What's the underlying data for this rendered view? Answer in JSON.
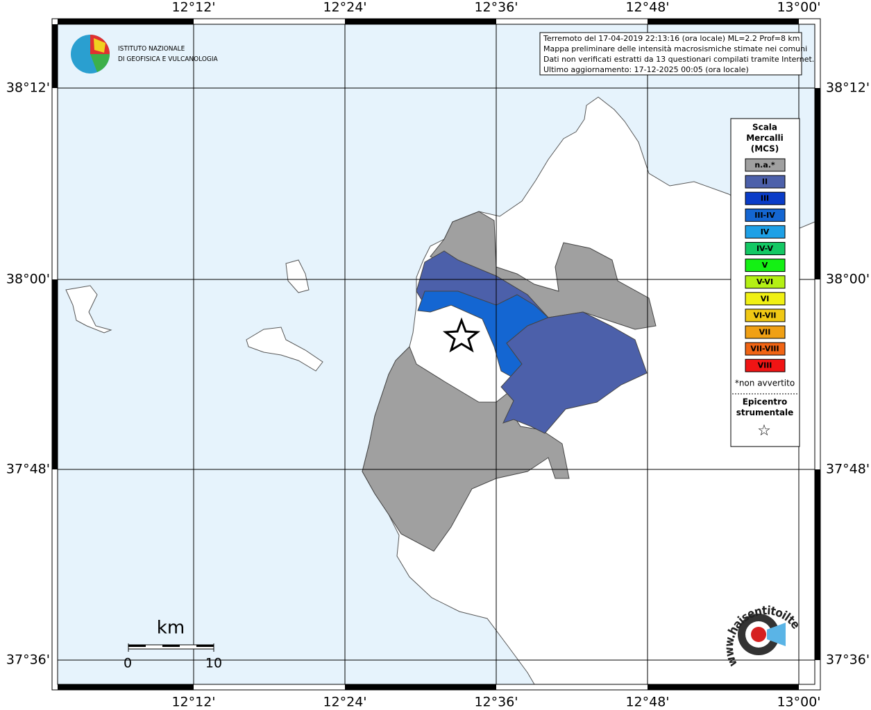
{
  "coordinates": {
    "longitudes": [
      "12°12'",
      "12°24'",
      "12°36'",
      "12°48'",
      "13°00'"
    ],
    "latitudes": [
      "38°12'",
      "38°00'",
      "37°48'",
      "37°36'"
    ]
  },
  "logo": {
    "line1": "ISTITUTO NAZIONALE",
    "line2": "DI GEOFISICA E VULCANOLOGIA"
  },
  "info": [
    "Terremoto del 17-04-2019 22:13:16 (ora locale) ML=2.2 Prof=8 km",
    "Mappa preliminare delle intensità macrosismiche stimate nei comuni",
    "Dati non verificati estratti da 13 questionari compilati tramite Internet.",
    "Ultimo aggiornamento: 17-12-2025 00:05 (ora locale)"
  ],
  "legend": {
    "title": [
      "Scala",
      "Mercalli",
      "(MCS)"
    ],
    "items": [
      {
        "label": "n.a.*",
        "color": "#a0a0a0",
        "text_color": "#ffffff"
      },
      {
        "label": "II",
        "color": "#4c60aa",
        "text_color": "#ffffff"
      },
      {
        "label": "III",
        "color": "#0a3cc8",
        "text_color": "#ffffff"
      },
      {
        "label": "III-IV",
        "color": "#1466d2",
        "text_color": "#ffffff"
      },
      {
        "label": "IV",
        "color": "#1ea0e6",
        "text_color": "#ffffff"
      },
      {
        "label": "IV-V",
        "color": "#14c864",
        "text_color": "#000000"
      },
      {
        "label": "V",
        "color": "#14f014",
        "text_color": "#000000"
      },
      {
        "label": "V-VI",
        "color": "#b4f014",
        "text_color": "#000000"
      },
      {
        "label": "VI",
        "color": "#f0f014",
        "text_color": "#000000"
      },
      {
        "label": "VI-VII",
        "color": "#f0c814",
        "text_color": "#000000"
      },
      {
        "label": "VII",
        "color": "#f0a014",
        "text_color": "#000000"
      },
      {
        "label": "VII-VIII",
        "color": "#f06414",
        "text_color": "#000000"
      },
      {
        "label": "VIII",
        "color": "#f01414",
        "text_color": "#000000"
      }
    ],
    "note": "*non avvertito",
    "epicenter": [
      "Epicentro",
      "strumentale"
    ],
    "star": "☆"
  },
  "scale": {
    "unit": "km",
    "start": "0",
    "end": "10"
  },
  "site": "www.haisentitoilterremoto.it"
}
